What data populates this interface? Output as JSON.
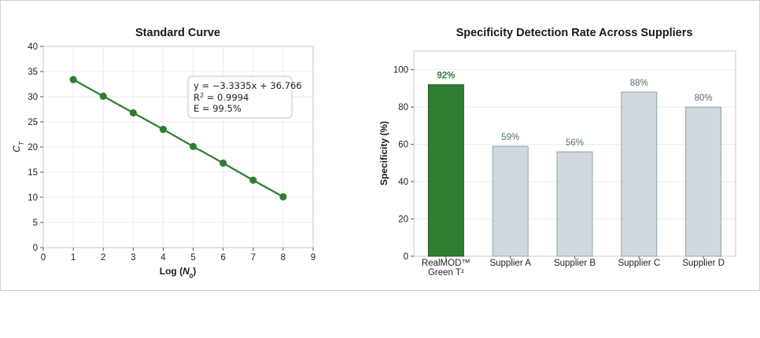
{
  "chart_data": [
    {
      "type": "line",
      "title": "Standard Curve",
      "xlabel_main": "Log (",
      "xlabel_var": "N",
      "xlabel_sub": "0",
      "xlabel_end": ")",
      "ylabel_main": "C",
      "ylabel_sub": "T",
      "xlim": [
        0,
        9
      ],
      "ylim": [
        0,
        40
      ],
      "x_ticks": [
        0,
        1,
        2,
        3,
        4,
        5,
        6,
        7,
        8,
        9
      ],
      "y_ticks": [
        0,
        5,
        10,
        15,
        20,
        25,
        30,
        35,
        40
      ],
      "x": [
        1,
        2,
        3,
        4,
        5,
        6,
        7,
        8
      ],
      "y": [
        33.4,
        30.1,
        26.8,
        23.5,
        20.1,
        16.8,
        13.4,
        10.1
      ],
      "grid": true,
      "line_color": "#2e7d32",
      "annotation": {
        "equation": "y = −3.3335x + 36.766",
        "r2_label": "R",
        "r2_sup": "2",
        "r2_value": " = 0.9994",
        "efficiency": "E = 99.5%"
      }
    },
    {
      "type": "bar",
      "title": "Specificity Detection Rate Across Suppliers",
      "ylabel": "Specificity (%)",
      "ylim": [
        0,
        110
      ],
      "y_ticks": [
        0,
        20,
        40,
        60,
        80,
        100
      ],
      "categories": [
        [
          "RealMOD™",
          "Green T²"
        ],
        [
          "Supplier A"
        ],
        [
          "Supplier B"
        ],
        [
          "Supplier C"
        ],
        [
          "Supplier D"
        ]
      ],
      "values": [
        92,
        59,
        56,
        88,
        80
      ],
      "value_labels": [
        "92%",
        "59%",
        "56%",
        "88%",
        "80%"
      ],
      "grid": true,
      "highlight_color": "#2e7d32",
      "bar_color": "#cfd8dc",
      "bar_edge": "#90a4ae",
      "label_color": "#546e7a"
    }
  ]
}
